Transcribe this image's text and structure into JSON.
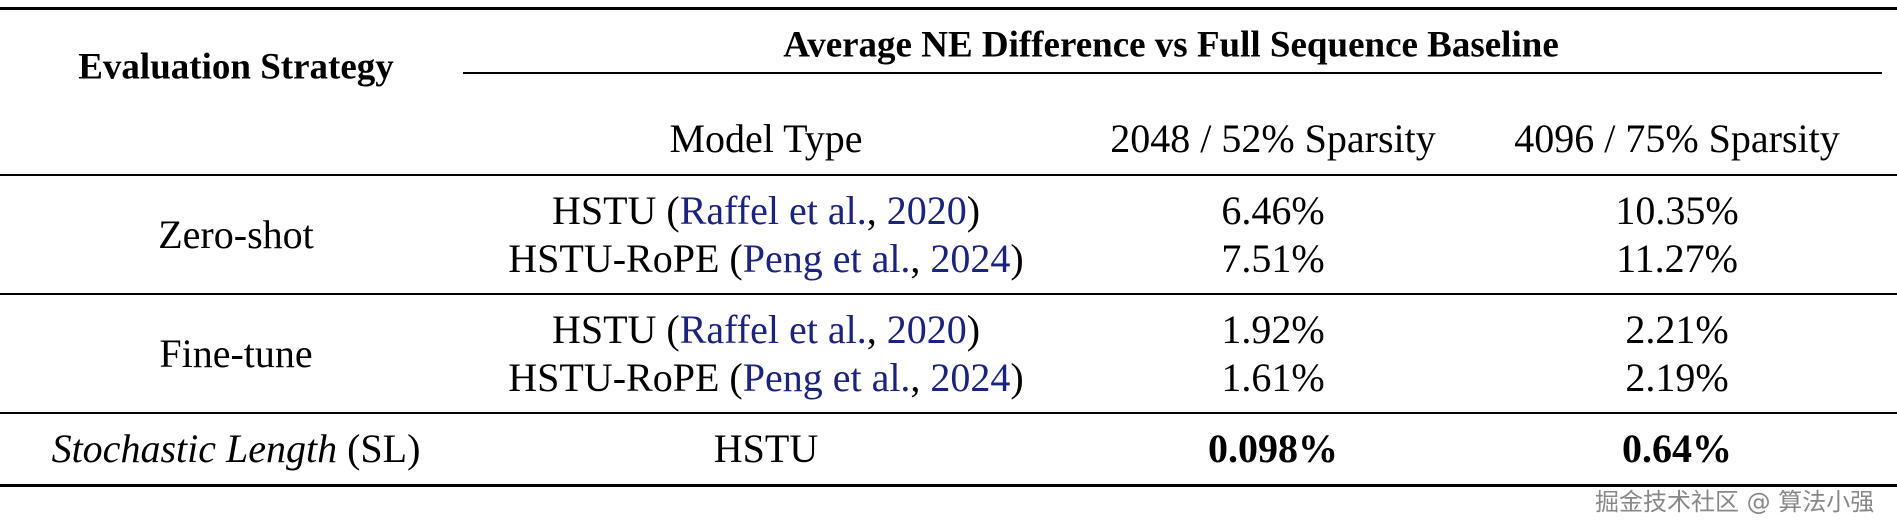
{
  "header": {
    "evaluation_strategy": "Evaluation Strategy",
    "group_title": "Average NE Difference vs Full Sequence Baseline",
    "columns": [
      "Model Type",
      "2048 / 52% Sparsity",
      "4096 / 75% Sparsity"
    ]
  },
  "groups": [
    {
      "strategy": [
        "Zero-shot"
      ],
      "rows": [
        {
          "model": [
            "HSTU (",
            "Raffel et al.",
            ", ",
            "2020",
            ")"
          ],
          "values": [
            "6.46%",
            "10.35%"
          ]
        },
        {
          "model": [
            "HSTU-RoPE (",
            "Peng et al.",
            ", ",
            "2024",
            ")"
          ],
          "values": [
            "7.51%",
            "11.27%"
          ]
        }
      ]
    },
    {
      "strategy": [
        "Fine-tune"
      ],
      "rows": [
        {
          "model": [
            "HSTU (",
            "Raffel et al.",
            ", ",
            "2020",
            ")"
          ],
          "values": [
            "1.92%",
            "2.21%"
          ]
        },
        {
          "model": [
            "HSTU-RoPE (",
            "Peng et al.",
            ", ",
            "2024",
            ")"
          ],
          "values": [
            "1.61%",
            "2.19%"
          ]
        }
      ]
    },
    {
      "strategy": [
        "Stochastic Length",
        " (SL)"
      ],
      "rows": [
        {
          "model": [
            "HSTU"
          ],
          "values": [
            "0.098%",
            "0.64%"
          ],
          "bold": true
        }
      ]
    }
  ],
  "watermark": "掘金技术社区 @ 算法小强"
}
